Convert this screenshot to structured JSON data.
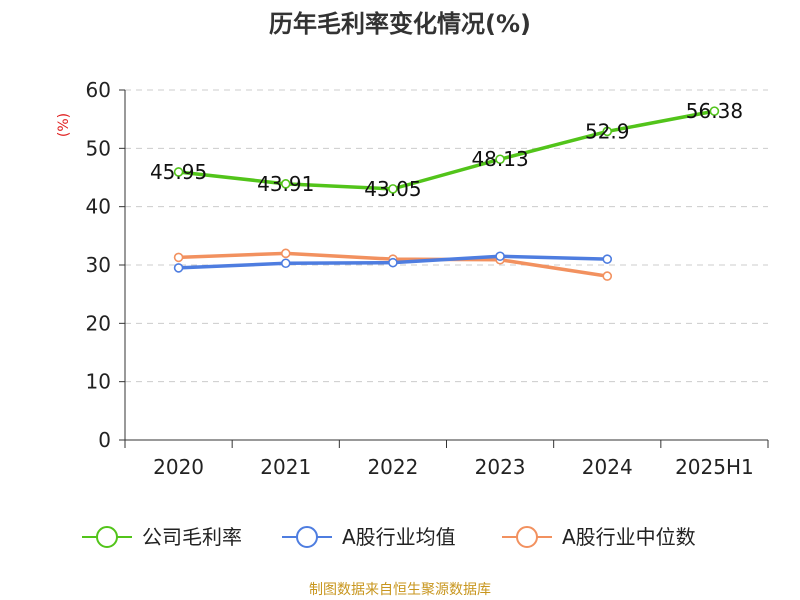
{
  "chart_data": {
    "type": "line",
    "title": "历年毛利率变化情况(%)",
    "ylabel": "(%)",
    "xlabel": "",
    "categories": [
      "2020",
      "2021",
      "2022",
      "2023",
      "2024",
      "2025H1"
    ],
    "ylim": [
      0,
      60
    ],
    "yticks": [
      0,
      10,
      20,
      30,
      40,
      50,
      60
    ],
    "grid": true,
    "legend_position": "bottom",
    "series": [
      {
        "name": "公司毛利率",
        "color": "#52c41a",
        "values": [
          45.95,
          43.91,
          43.05,
          48.13,
          52.9,
          56.38
        ],
        "labels": [
          "45.95",
          "43.91",
          "43.05",
          "48.13",
          "52.9",
          "56.38"
        ]
      },
      {
        "name": "A股行业均值",
        "color": "#4e7de0",
        "values": [
          29.5,
          30.3,
          30.4,
          31.5,
          31.0,
          null
        ]
      },
      {
        "name": "A股行业中位数",
        "color": "#f2915f",
        "values": [
          31.3,
          32.0,
          31.0,
          30.9,
          28.1,
          null
        ]
      }
    ]
  },
  "source": {
    "text": "制图数据来自恒生聚源数据库",
    "color": "#c8961e"
  }
}
